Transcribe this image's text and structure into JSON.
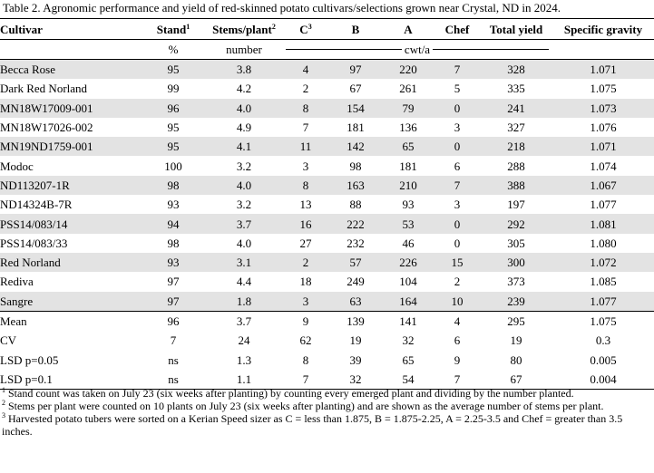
{
  "caption": "Table 2. Agronomic performance and yield of red-skinned potato cultivars/selections grown near Crystal, ND in 2024.",
  "headers": {
    "cultivar": "Cultivar",
    "stand": "Stand",
    "stand_sup": "1",
    "stems": "Stems/plant",
    "stems_sup": "2",
    "c": "C",
    "c_sup": "3",
    "b": "B",
    "a": "A",
    "chef": "Chef",
    "total": "Total yield",
    "sg": "Specific gravity"
  },
  "units": {
    "stand": "%",
    "stems": "number",
    "yield": "cwt/a"
  },
  "rows": [
    {
      "cultivar": "Becca Rose",
      "stand": "95",
      "stems": "3.8",
      "c": "4",
      "b": "97",
      "a": "220",
      "chef": "7",
      "total": "328",
      "sg": "1.071"
    },
    {
      "cultivar": "Dark Red Norland",
      "stand": "99",
      "stems": "4.2",
      "c": "2",
      "b": "67",
      "a": "261",
      "chef": "5",
      "total": "335",
      "sg": "1.075"
    },
    {
      "cultivar": "MN18W17009-001",
      "stand": "96",
      "stems": "4.0",
      "c": "8",
      "b": "154",
      "a": "79",
      "chef": "0",
      "total": "241",
      "sg": "1.073"
    },
    {
      "cultivar": "MN18W17026-002",
      "stand": "95",
      "stems": "4.9",
      "c": "7",
      "b": "181",
      "a": "136",
      "chef": "3",
      "total": "327",
      "sg": "1.076"
    },
    {
      "cultivar": "MN19ND1759-001",
      "stand": "95",
      "stems": "4.1",
      "c": "11",
      "b": "142",
      "a": "65",
      "chef": "0",
      "total": "218",
      "sg": "1.071"
    },
    {
      "cultivar": "Modoc",
      "stand": "100",
      "stems": "3.2",
      "c": "3",
      "b": "98",
      "a": "181",
      "chef": "6",
      "total": "288",
      "sg": "1.074"
    },
    {
      "cultivar": "ND113207-1R",
      "stand": "98",
      "stems": "4.0",
      "c": "8",
      "b": "163",
      "a": "210",
      "chef": "7",
      "total": "388",
      "sg": "1.067"
    },
    {
      "cultivar": "ND14324B-7R",
      "stand": "93",
      "stems": "3.2",
      "c": "13",
      "b": "88",
      "a": "93",
      "chef": "3",
      "total": "197",
      "sg": "1.077"
    },
    {
      "cultivar": "PSS14/083/14",
      "stand": "94",
      "stems": "3.7",
      "c": "16",
      "b": "222",
      "a": "53",
      "chef": "0",
      "total": "292",
      "sg": "1.081"
    },
    {
      "cultivar": "PSS14/083/33",
      "stand": "98",
      "stems": "4.0",
      "c": "27",
      "b": "232",
      "a": "46",
      "chef": "0",
      "total": "305",
      "sg": "1.080"
    },
    {
      "cultivar": "Red Norland",
      "stand": "93",
      "stems": "3.1",
      "c": "2",
      "b": "57",
      "a": "226",
      "chef": "15",
      "total": "300",
      "sg": "1.072"
    },
    {
      "cultivar": "Rediva",
      "stand": "97",
      "stems": "4.4",
      "c": "18",
      "b": "249",
      "a": "104",
      "chef": "2",
      "total": "373",
      "sg": "1.085"
    },
    {
      "cultivar": "Sangre",
      "stand": "97",
      "stems": "1.8",
      "c": "3",
      "b": "63",
      "a": "164",
      "chef": "10",
      "total": "239",
      "sg": "1.077"
    }
  ],
  "stats": [
    {
      "cultivar": "Mean",
      "stand": "96",
      "stems": "3.7",
      "c": "9",
      "b": "139",
      "a": "141",
      "chef": "4",
      "total": "295",
      "sg": "1.075"
    },
    {
      "cultivar": "CV",
      "stand": "7",
      "stems": "24",
      "c": "62",
      "b": "19",
      "a": "32",
      "chef": "6",
      "total": "19",
      "sg": "0.3"
    },
    {
      "cultivar": "LSD p=0.05",
      "stand": "ns",
      "stems": "1.3",
      "c": "8",
      "b": "39",
      "a": "65",
      "chef": "9",
      "total": "80",
      "sg": "0.005"
    },
    {
      "cultivar": "LSD p=0.1",
      "stand": "ns",
      "stems": "1.1",
      "c": "7",
      "b": "32",
      "a": "54",
      "chef": "7",
      "total": "67",
      "sg": "0.004"
    }
  ],
  "footnotes": [
    {
      "sup": "1",
      "text": " Stand count was taken on July 23 (six weeks after planting) by counting every emerged plant and dividing by the number planted."
    },
    {
      "sup": "2",
      "text": " Stems per plant were counted on 10 plants on July 23 (six weeks after planting) and are shown as the average number of stems per plant."
    },
    {
      "sup": "3",
      "text": " Harvested potato tubers were sorted on a Kerian Speed sizer as C = less than 1.875, B = 1.875-2.25, A = 2.25-3.5 and Chef = greater than 3.5 inches."
    }
  ],
  "colors": {
    "shade": "#e3e3e3"
  }
}
